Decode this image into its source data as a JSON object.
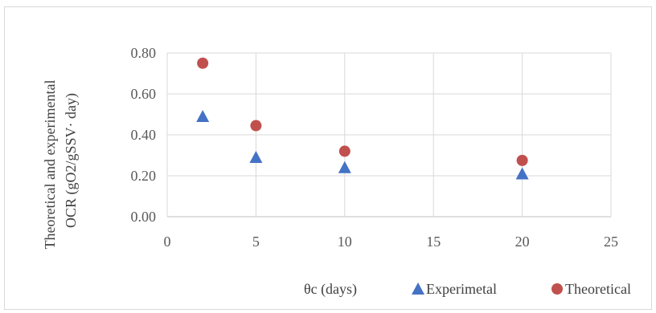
{
  "chart_data": {
    "type": "scatter",
    "title": "",
    "xlabel": "θc (days)",
    "ylabel_line1": "Theoretical and experimental",
    "ylabel_line2": "OCR  (gO2/gSSV· day)",
    "xlim": [
      0,
      25
    ],
    "ylim": [
      0,
      0.8
    ],
    "x_ticks": [
      "0",
      "5",
      "10",
      "15",
      "20",
      "25"
    ],
    "y_ticks": [
      "0.00",
      "0.20",
      "0.40",
      "0.60",
      "0.80"
    ],
    "grid": "vertical and horizontal",
    "legend_position": "bottom-right",
    "series": [
      {
        "name": "Experimetal",
        "marker": "triangle",
        "color": "#4472c4",
        "x": [
          2,
          5,
          10,
          20
        ],
        "y": [
          0.49,
          0.29,
          0.24,
          0.21
        ]
      },
      {
        "name": "Theoretical",
        "marker": "circle",
        "color": "#c0504d",
        "x": [
          2,
          5,
          10,
          20
        ],
        "y": [
          0.75,
          0.445,
          0.32,
          0.275
        ]
      }
    ]
  }
}
